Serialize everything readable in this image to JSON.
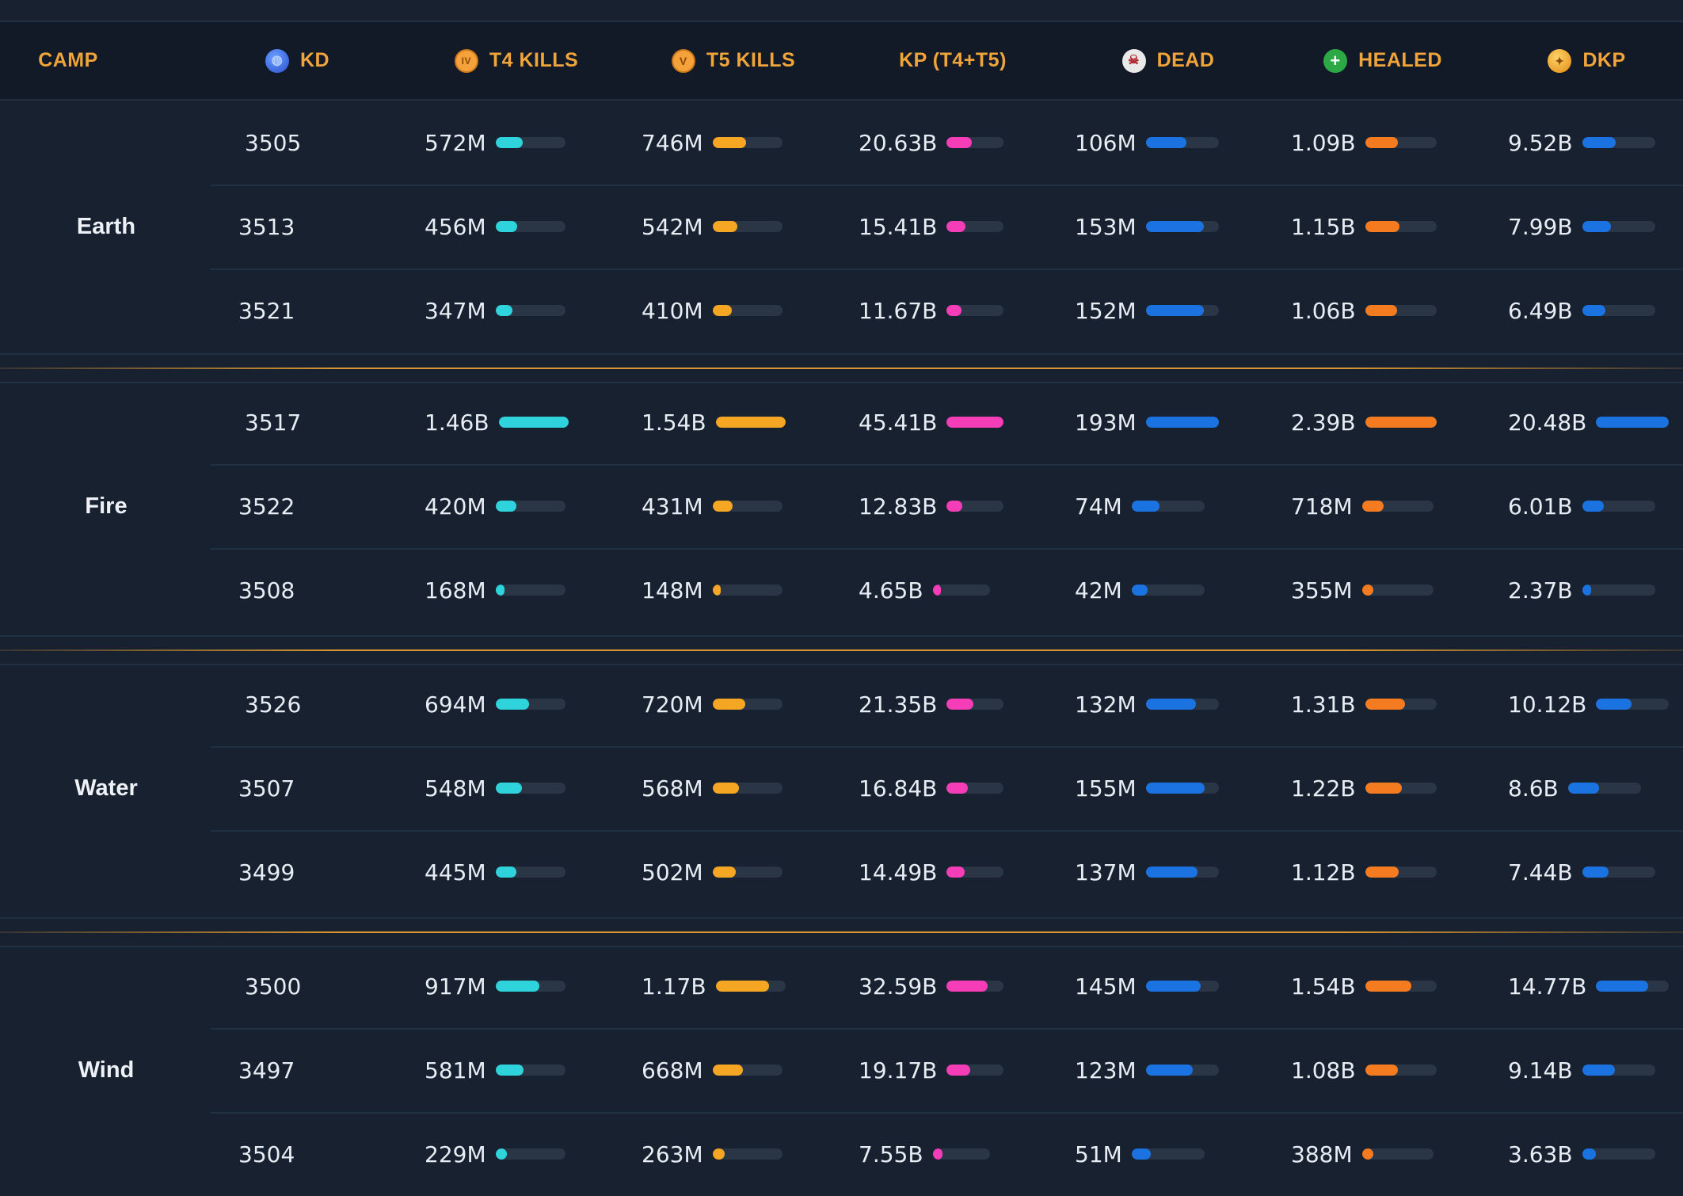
{
  "colors": {
    "t4": "#2fd3dc",
    "t5": "#f5a623",
    "kp": "#f53db8",
    "dead": "#1a73e0",
    "healed": "#f47b20",
    "dkp": "#1a73e0"
  },
  "headers": {
    "camp": "CAMP",
    "kd": "KD",
    "t4": "T4 KILLS",
    "t5": "T5 KILLS",
    "kp": "KP (T4+T5)",
    "dead": "DEAD",
    "healed": "HEALED",
    "dkp": "DKP"
  },
  "header_icons": {
    "kd": "globe-icon",
    "t4": "tier-iv-icon",
    "t5": "tier-v-icon",
    "dead": "skull-icon",
    "healed": "plus-icon",
    "dkp": "coin-icon"
  },
  "camps": [
    {
      "name": "Earth",
      "rows": [
        {
          "kd": "3505",
          "t4": "572M",
          "t4_frac": 0.39,
          "t5": "746M",
          "t5_frac": 0.48,
          "kp": "20.63B",
          "kp_frac": 0.45,
          "dead": "106M",
          "dead_frac": 0.55,
          "healed": "1.09B",
          "healed_frac": 0.46,
          "dkp": "9.52B",
          "dkp_frac": 0.46
        },
        {
          "kd": "3513",
          "t4": "456M",
          "t4_frac": 0.31,
          "t5": "542M",
          "t5_frac": 0.35,
          "kp": "15.41B",
          "kp_frac": 0.34,
          "dead": "153M",
          "dead_frac": 0.79,
          "healed": "1.15B",
          "healed_frac": 0.48,
          "dkp": "7.99B",
          "dkp_frac": 0.39
        },
        {
          "kd": "3521",
          "t4": "347M",
          "t4_frac": 0.24,
          "t5": "410M",
          "t5_frac": 0.27,
          "kp": "11.67B",
          "kp_frac": 0.26,
          "dead": "152M",
          "dead_frac": 0.79,
          "healed": "1.06B",
          "healed_frac": 0.44,
          "dkp": "6.49B",
          "dkp_frac": 0.32
        }
      ]
    },
    {
      "name": "Fire",
      "rows": [
        {
          "kd": "3517",
          "t4": "1.46B",
          "t4_frac": 1.0,
          "t5": "1.54B",
          "t5_frac": 1.0,
          "kp": "45.41B",
          "kp_frac": 1.0,
          "dead": "193M",
          "dead_frac": 1.0,
          "healed": "2.39B",
          "healed_frac": 1.0,
          "dkp": "20.48B",
          "dkp_frac": 1.0
        },
        {
          "kd": "3522",
          "t4": "420M",
          "t4_frac": 0.29,
          "t5": "431M",
          "t5_frac": 0.28,
          "kp": "12.83B",
          "kp_frac": 0.28,
          "dead": "74M",
          "dead_frac": 0.38,
          "healed": "718M",
          "healed_frac": 0.3,
          "dkp": "6.01B",
          "dkp_frac": 0.29
        },
        {
          "kd": "3508",
          "t4": "168M",
          "t4_frac": 0.12,
          "t5": "148M",
          "t5_frac": 0.1,
          "kp": "4.65B",
          "kp_frac": 0.1,
          "dead": "42M",
          "dead_frac": 0.22,
          "healed": "355M",
          "healed_frac": 0.15,
          "dkp": "2.37B",
          "dkp_frac": 0.12
        }
      ]
    },
    {
      "name": "Water",
      "rows": [
        {
          "kd": "3526",
          "t4": "694M",
          "t4_frac": 0.48,
          "t5": "720M",
          "t5_frac": 0.47,
          "kp": "21.35B",
          "kp_frac": 0.47,
          "dead": "132M",
          "dead_frac": 0.68,
          "healed": "1.31B",
          "healed_frac": 0.55,
          "dkp": "10.12B",
          "dkp_frac": 0.49
        },
        {
          "kd": "3507",
          "t4": "548M",
          "t4_frac": 0.38,
          "t5": "568M",
          "t5_frac": 0.37,
          "kp": "16.84B",
          "kp_frac": 0.37,
          "dead": "155M",
          "dead_frac": 0.8,
          "healed": "1.22B",
          "healed_frac": 0.51,
          "dkp": "8.6B",
          "dkp_frac": 0.42
        },
        {
          "kd": "3499",
          "t4": "445M",
          "t4_frac": 0.3,
          "t5": "502M",
          "t5_frac": 0.33,
          "kp": "14.49B",
          "kp_frac": 0.32,
          "dead": "137M",
          "dead_frac": 0.71,
          "healed": "1.12B",
          "healed_frac": 0.47,
          "dkp": "7.44B",
          "dkp_frac": 0.36
        }
      ]
    },
    {
      "name": "Wind",
      "rows": [
        {
          "kd": "3500",
          "t4": "917M",
          "t4_frac": 0.63,
          "t5": "1.17B",
          "t5_frac": 0.76,
          "kp": "32.59B",
          "kp_frac": 0.72,
          "dead": "145M",
          "dead_frac": 0.75,
          "healed": "1.54B",
          "healed_frac": 0.64,
          "dkp": "14.77B",
          "dkp_frac": 0.72
        },
        {
          "kd": "3497",
          "t4": "581M",
          "t4_frac": 0.4,
          "t5": "668M",
          "t5_frac": 0.43,
          "kp": "19.17B",
          "kp_frac": 0.42,
          "dead": "123M",
          "dead_frac": 0.64,
          "healed": "1.08B",
          "healed_frac": 0.45,
          "dkp": "9.14B",
          "dkp_frac": 0.45
        },
        {
          "kd": "3504",
          "t4": "229M",
          "t4_frac": 0.16,
          "t5": "263M",
          "t5_frac": 0.17,
          "kp": "7.55B",
          "kp_frac": 0.17,
          "dead": "51M",
          "dead_frac": 0.26,
          "healed": "388M",
          "healed_frac": 0.16,
          "dkp": "3.63B",
          "dkp_frac": 0.18
        }
      ]
    }
  ]
}
